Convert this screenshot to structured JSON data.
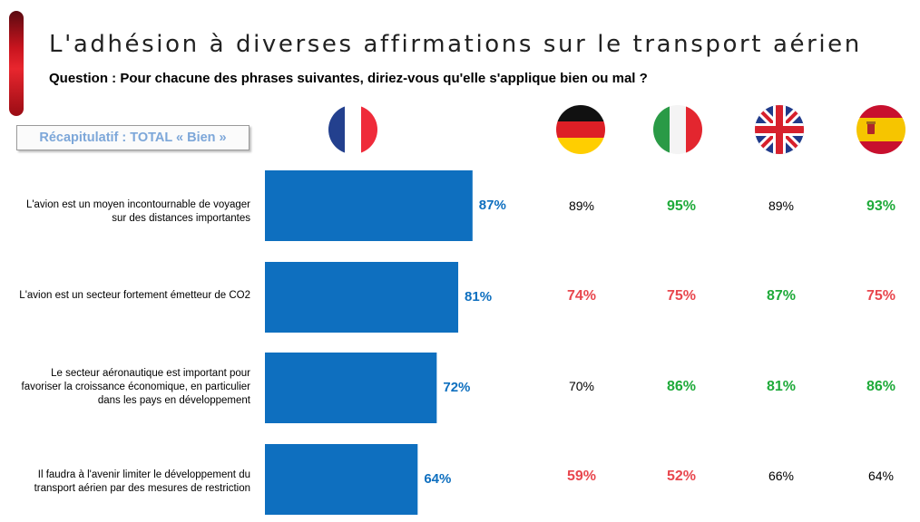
{
  "header": {
    "title": "L'adhésion à diverses affirmations sur le transport aérien",
    "question": "Question : Pour chacune des phrases suivantes, diriez-vous qu'elle s'applique bien ou mal ?"
  },
  "recap_label": "Récapitulatif : TOTAL « Bien »",
  "flags": [
    {
      "name": "france-flag-icon"
    },
    {
      "name": "germany-flag-icon"
    },
    {
      "name": "italy-flag-icon"
    },
    {
      "name": "uk-flag-icon"
    },
    {
      "name": "spain-flag-icon"
    }
  ],
  "colors": {
    "bar": "#0e6fbf",
    "positive": "#1faa3a",
    "negative": "#e8474e",
    "neutral": "#000000",
    "accent": "#c8141e"
  },
  "chart_data": {
    "type": "bar",
    "orientation": "horizontal",
    "categories": [
      "L'avion est un moyen incontournable de voyager sur des distances importantes",
      "L'avion est un secteur fortement émetteur de CO2",
      "Le secteur aéronautique est important pour favoriser la croissance économique, en particulier dans les pays en développement",
      "Il faudra à l'avenir limiter le développement du transport aérien par des mesures de restriction"
    ],
    "series": [
      {
        "values": [
          87,
          81,
          72,
          64
        ],
        "labels": [
          "87%",
          "81%",
          "72%",
          "64%"
        ]
      }
    ],
    "xlim": [
      0,
      100
    ],
    "table": {
      "columns": [
        "germany",
        "italy",
        "uk",
        "spain"
      ],
      "rows": [
        {
          "values": [
            "89%",
            "95%",
            "89%",
            "93%"
          ],
          "styles": [
            "neutral",
            "positive",
            "neutral",
            "positive"
          ]
        },
        {
          "values": [
            "74%",
            "75%",
            "87%",
            "75%"
          ],
          "styles": [
            "negative",
            "negative",
            "positive",
            "negative"
          ]
        },
        {
          "values": [
            "70%",
            "86%",
            "81%",
            "86%"
          ],
          "styles": [
            "neutral",
            "positive",
            "positive",
            "positive"
          ]
        },
        {
          "values": [
            "59%",
            "52%",
            "66%",
            "64%"
          ],
          "styles": [
            "negative",
            "negative",
            "neutral",
            "neutral"
          ]
        }
      ]
    }
  },
  "row_labels": [
    [
      "L'avion est un moyen incontournable de voyager",
      "sur des distances importantes"
    ],
    [
      "L'avion est un secteur fortement émetteur de CO2"
    ],
    [
      "Le secteur aéronautique est important pour",
      "favoriser la croissance économique, en particulier",
      "dans les pays en développement"
    ],
    [
      "Il faudra à l'avenir limiter le développement du",
      "transport aérien par des mesures de restriction"
    ]
  ]
}
